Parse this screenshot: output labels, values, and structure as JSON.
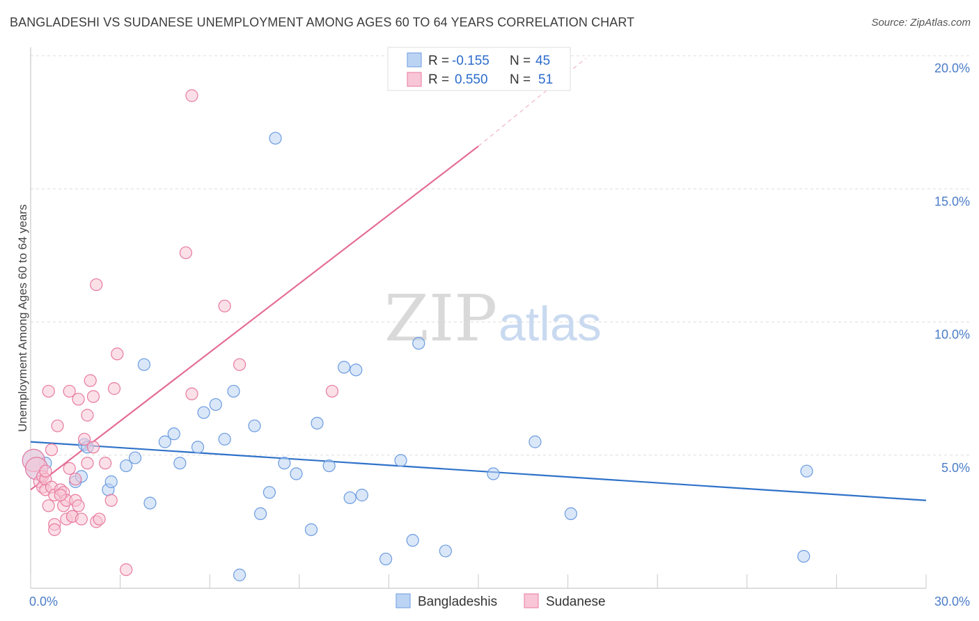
{
  "title": "BANGLADESHI VS SUDANESE UNEMPLOYMENT AMONG AGES 60 TO 64 YEARS CORRELATION CHART",
  "source": "Source: ZipAtlas.com",
  "watermark": {
    "zip": "ZIP",
    "atlas": "atlas"
  },
  "legend": {
    "rows": [
      {
        "r_label": "R =",
        "r_value": "-0.155",
        "n_label": "N =",
        "n_value": "45",
        "color": "#a9c8f0"
      },
      {
        "r_label": "R =",
        "r_value": "0.550",
        "n_label": "N =",
        "n_value": "51",
        "color": "#f6b6cb"
      }
    ]
  },
  "bottom_legend": [
    "Bangladeshis",
    "Sudanese"
  ],
  "chart_data": {
    "type": "scatter",
    "title": "BANGLADESHI VS SUDANESE UNEMPLOYMENT AMONG AGES 60 TO 64 YEARS CORRELATION CHART",
    "xlabel": "",
    "ylabel": "Unemployment Among Ages 60 to 64 years",
    "xlim": [
      0,
      30
    ],
    "ylim": [
      0,
      20
    ],
    "x_tick_labels": [
      {
        "value": 0,
        "label": "0.0%"
      },
      {
        "value": 30,
        "label": "30.0%"
      }
    ],
    "y_tick_labels": [
      {
        "value": 5,
        "label": "5.0%"
      },
      {
        "value": 10,
        "label": "10.0%"
      },
      {
        "value": 15,
        "label": "15.0%"
      },
      {
        "value": 20,
        "label": "20.0%"
      }
    ],
    "series": [
      {
        "name": "Bangladeshis",
        "color": "#6b9be0",
        "fill": "#bcd4f3",
        "points": [
          [
            0.1,
            4.8
          ],
          [
            0.5,
            4.7
          ],
          [
            1.5,
            4.0
          ],
          [
            1.7,
            4.2
          ],
          [
            1.8,
            5.4
          ],
          [
            1.9,
            5.3
          ],
          [
            2.6,
            3.7
          ],
          [
            2.7,
            4.0
          ],
          [
            3.2,
            4.6
          ],
          [
            3.5,
            4.9
          ],
          [
            3.8,
            8.4
          ],
          [
            4.0,
            3.2
          ],
          [
            4.5,
            5.5
          ],
          [
            4.8,
            5.8
          ],
          [
            5.0,
            4.7
          ],
          [
            5.6,
            5.3
          ],
          [
            5.8,
            6.6
          ],
          [
            6.2,
            6.9
          ],
          [
            6.5,
            5.6
          ],
          [
            6.8,
            7.4
          ],
          [
            7.0,
            0.5
          ],
          [
            7.5,
            6.1
          ],
          [
            7.7,
            2.8
          ],
          [
            8.0,
            3.6
          ],
          [
            8.2,
            16.9
          ],
          [
            8.5,
            4.7
          ],
          [
            8.9,
            4.3
          ],
          [
            9.4,
            2.2
          ],
          [
            9.6,
            6.2
          ],
          [
            10.0,
            4.6
          ],
          [
            10.5,
            8.3
          ],
          [
            10.7,
            3.4
          ],
          [
            10.9,
            8.2
          ],
          [
            11.1,
            3.5
          ],
          [
            11.9,
            1.1
          ],
          [
            12.4,
            4.8
          ],
          [
            12.8,
            1.8
          ],
          [
            13.0,
            9.2
          ],
          [
            13.9,
            1.4
          ],
          [
            15.5,
            4.3
          ],
          [
            16.9,
            5.5
          ],
          [
            18.1,
            2.8
          ],
          [
            25.9,
            1.2
          ],
          [
            26.0,
            4.4
          ],
          [
            0.2,
            4.5
          ]
        ],
        "trend": {
          "x": [
            0,
            30
          ],
          "y": [
            5.5,
            3.3
          ]
        }
      },
      {
        "name": "Sudanese",
        "color": "#e87aa0",
        "fill": "#f8c6d6",
        "points": [
          [
            0.1,
            4.8
          ],
          [
            0.2,
            4.5
          ],
          [
            0.3,
            4.0
          ],
          [
            0.4,
            3.8
          ],
          [
            0.4,
            4.2
          ],
          [
            0.5,
            3.7
          ],
          [
            0.5,
            4.1
          ],
          [
            0.5,
            4.4
          ],
          [
            0.6,
            3.1
          ],
          [
            0.6,
            7.4
          ],
          [
            0.7,
            3.8
          ],
          [
            0.7,
            5.2
          ],
          [
            0.8,
            3.5
          ],
          [
            0.8,
            2.4
          ],
          [
            0.8,
            2.2
          ],
          [
            0.9,
            6.1
          ],
          [
            1.0,
            3.7
          ],
          [
            1.1,
            3.6
          ],
          [
            1.1,
            3.1
          ],
          [
            1.2,
            2.6
          ],
          [
            1.2,
            3.3
          ],
          [
            1.3,
            4.5
          ],
          [
            1.3,
            7.4
          ],
          [
            1.4,
            2.7
          ],
          [
            1.4,
            2.7
          ],
          [
            1.5,
            4.1
          ],
          [
            1.5,
            3.3
          ],
          [
            1.6,
            7.1
          ],
          [
            1.6,
            3.1
          ],
          [
            1.7,
            2.6
          ],
          [
            1.8,
            5.6
          ],
          [
            1.9,
            4.7
          ],
          [
            1.9,
            6.5
          ],
          [
            2.0,
            7.8
          ],
          [
            2.1,
            7.2
          ],
          [
            2.1,
            5.3
          ],
          [
            2.2,
            2.5
          ],
          [
            2.2,
            11.4
          ],
          [
            2.3,
            2.6
          ],
          [
            2.5,
            4.7
          ],
          [
            2.7,
            3.3
          ],
          [
            2.8,
            7.5
          ],
          [
            2.9,
            8.8
          ],
          [
            3.2,
            0.7
          ],
          [
            5.2,
            12.6
          ],
          [
            5.4,
            18.5
          ],
          [
            5.4,
            7.3
          ],
          [
            6.5,
            10.6
          ],
          [
            7.0,
            8.4
          ],
          [
            10.1,
            7.4
          ],
          [
            1.0,
            3.5
          ]
        ],
        "trend": {
          "x": [
            0,
            15.0
          ],
          "y": [
            3.7,
            16.6
          ]
        },
        "trend_extension": {
          "x": [
            15.0,
            18.6
          ],
          "y": [
            16.6,
            19.9
          ]
        }
      }
    ]
  }
}
